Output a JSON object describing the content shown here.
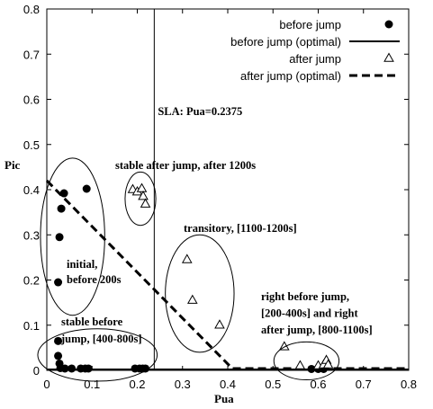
{
  "chart_data": {
    "type": "scatter",
    "xlabel": "Pua",
    "ylabel": "Pic",
    "xlim": [
      0,
      0.8
    ],
    "ylim": [
      0,
      0.8
    ],
    "xticks": [
      "0",
      "0.1",
      "0.2",
      "0.3",
      "0.4",
      "0.5",
      "0.6",
      "0.7",
      "0.8"
    ],
    "yticks": [
      "0",
      "0.1",
      "0.2",
      "0.3",
      "0.4",
      "0.5",
      "0.6",
      "0.7",
      "0.8"
    ],
    "legend_position": "top-right",
    "series": [
      {
        "name": "before jump",
        "marker": "filled-circle",
        "color": "#000000",
        "points": [
          [
            0.025,
            0.195
          ],
          [
            0.028,
            0.295
          ],
          [
            0.032,
            0.358
          ],
          [
            0.038,
            0.392
          ],
          [
            0.088,
            0.402
          ],
          [
            0.025,
            0.065
          ],
          [
            0.025,
            0.032
          ],
          [
            0.028,
            0.015
          ],
          [
            0.03,
            0.005
          ],
          [
            0.04,
            0.004
          ],
          [
            0.055,
            0.004
          ],
          [
            0.075,
            0.004
          ],
          [
            0.085,
            0.004
          ],
          [
            0.092,
            0.004
          ],
          [
            0.195,
            0.004
          ],
          [
            0.205,
            0.004
          ],
          [
            0.212,
            0.004
          ],
          [
            0.218,
            0.004
          ],
          [
            0.585,
            0.003
          ],
          [
            0.6,
            0.003
          ],
          [
            0.612,
            0.003
          ]
        ]
      },
      {
        "name": "before jump (optimal)",
        "line": "solid",
        "color": "#000000",
        "points": [
          [
            0,
            0.002
          ],
          [
            0.8,
            0.002
          ]
        ]
      },
      {
        "name": "after jump",
        "marker": "open-triangle",
        "color": "#000000",
        "points": [
          [
            0.19,
            0.4
          ],
          [
            0.2,
            0.395
          ],
          [
            0.21,
            0.402
          ],
          [
            0.213,
            0.385
          ],
          [
            0.218,
            0.368
          ],
          [
            0.31,
            0.245
          ],
          [
            0.322,
            0.155
          ],
          [
            0.382,
            0.1
          ],
          [
            0.525,
            0.052
          ],
          [
            0.56,
            0.01
          ],
          [
            0.6,
            0.01
          ],
          [
            0.612,
            0.012
          ],
          [
            0.618,
            0.022
          ],
          [
            0.622,
            0.012
          ]
        ]
      },
      {
        "name": "after jump (optimal)",
        "line": "dashed",
        "color": "#000000",
        "points": [
          [
            0,
            0.42
          ],
          [
            0.41,
            0.004
          ],
          [
            0.8,
            0.004
          ]
        ]
      }
    ],
    "reference_line": {
      "x": 0.2375,
      "label": "SLA: Pua=0.2375"
    },
    "annotations": [
      {
        "id": "stable-after",
        "lines": [
          "stable after jump, after 1200s"
        ],
        "ellipse": {
          "cx": 0.207,
          "cy": 0.38,
          "rx": 0.034,
          "ry": 0.059
        }
      },
      {
        "id": "transitory",
        "lines": [
          "transitory, [1100-1200s]"
        ],
        "ellipse": {
          "cx": 0.338,
          "cy": 0.17,
          "rx": 0.076,
          "ry": 0.13
        }
      },
      {
        "id": "initial",
        "lines": [
          "initial,",
          "before 200s"
        ],
        "ellipse": {
          "cx": 0.057,
          "cy": 0.296,
          "rx": 0.071,
          "ry": 0.174
        }
      },
      {
        "id": "stable-before",
        "lines": [
          "stable before",
          "jump, [400-800s]"
        ],
        "ellipse": {
          "cx": 0.112,
          "cy": 0.034,
          "rx": 0.132,
          "ry": 0.058
        }
      },
      {
        "id": "right-before",
        "lines": [
          "right before jump,",
          "[200-400s] and right",
          "after jump, [800-1100s]"
        ],
        "ellipse": {
          "cx": 0.574,
          "cy": 0.021,
          "rx": 0.072,
          "ry": 0.042
        }
      }
    ]
  }
}
